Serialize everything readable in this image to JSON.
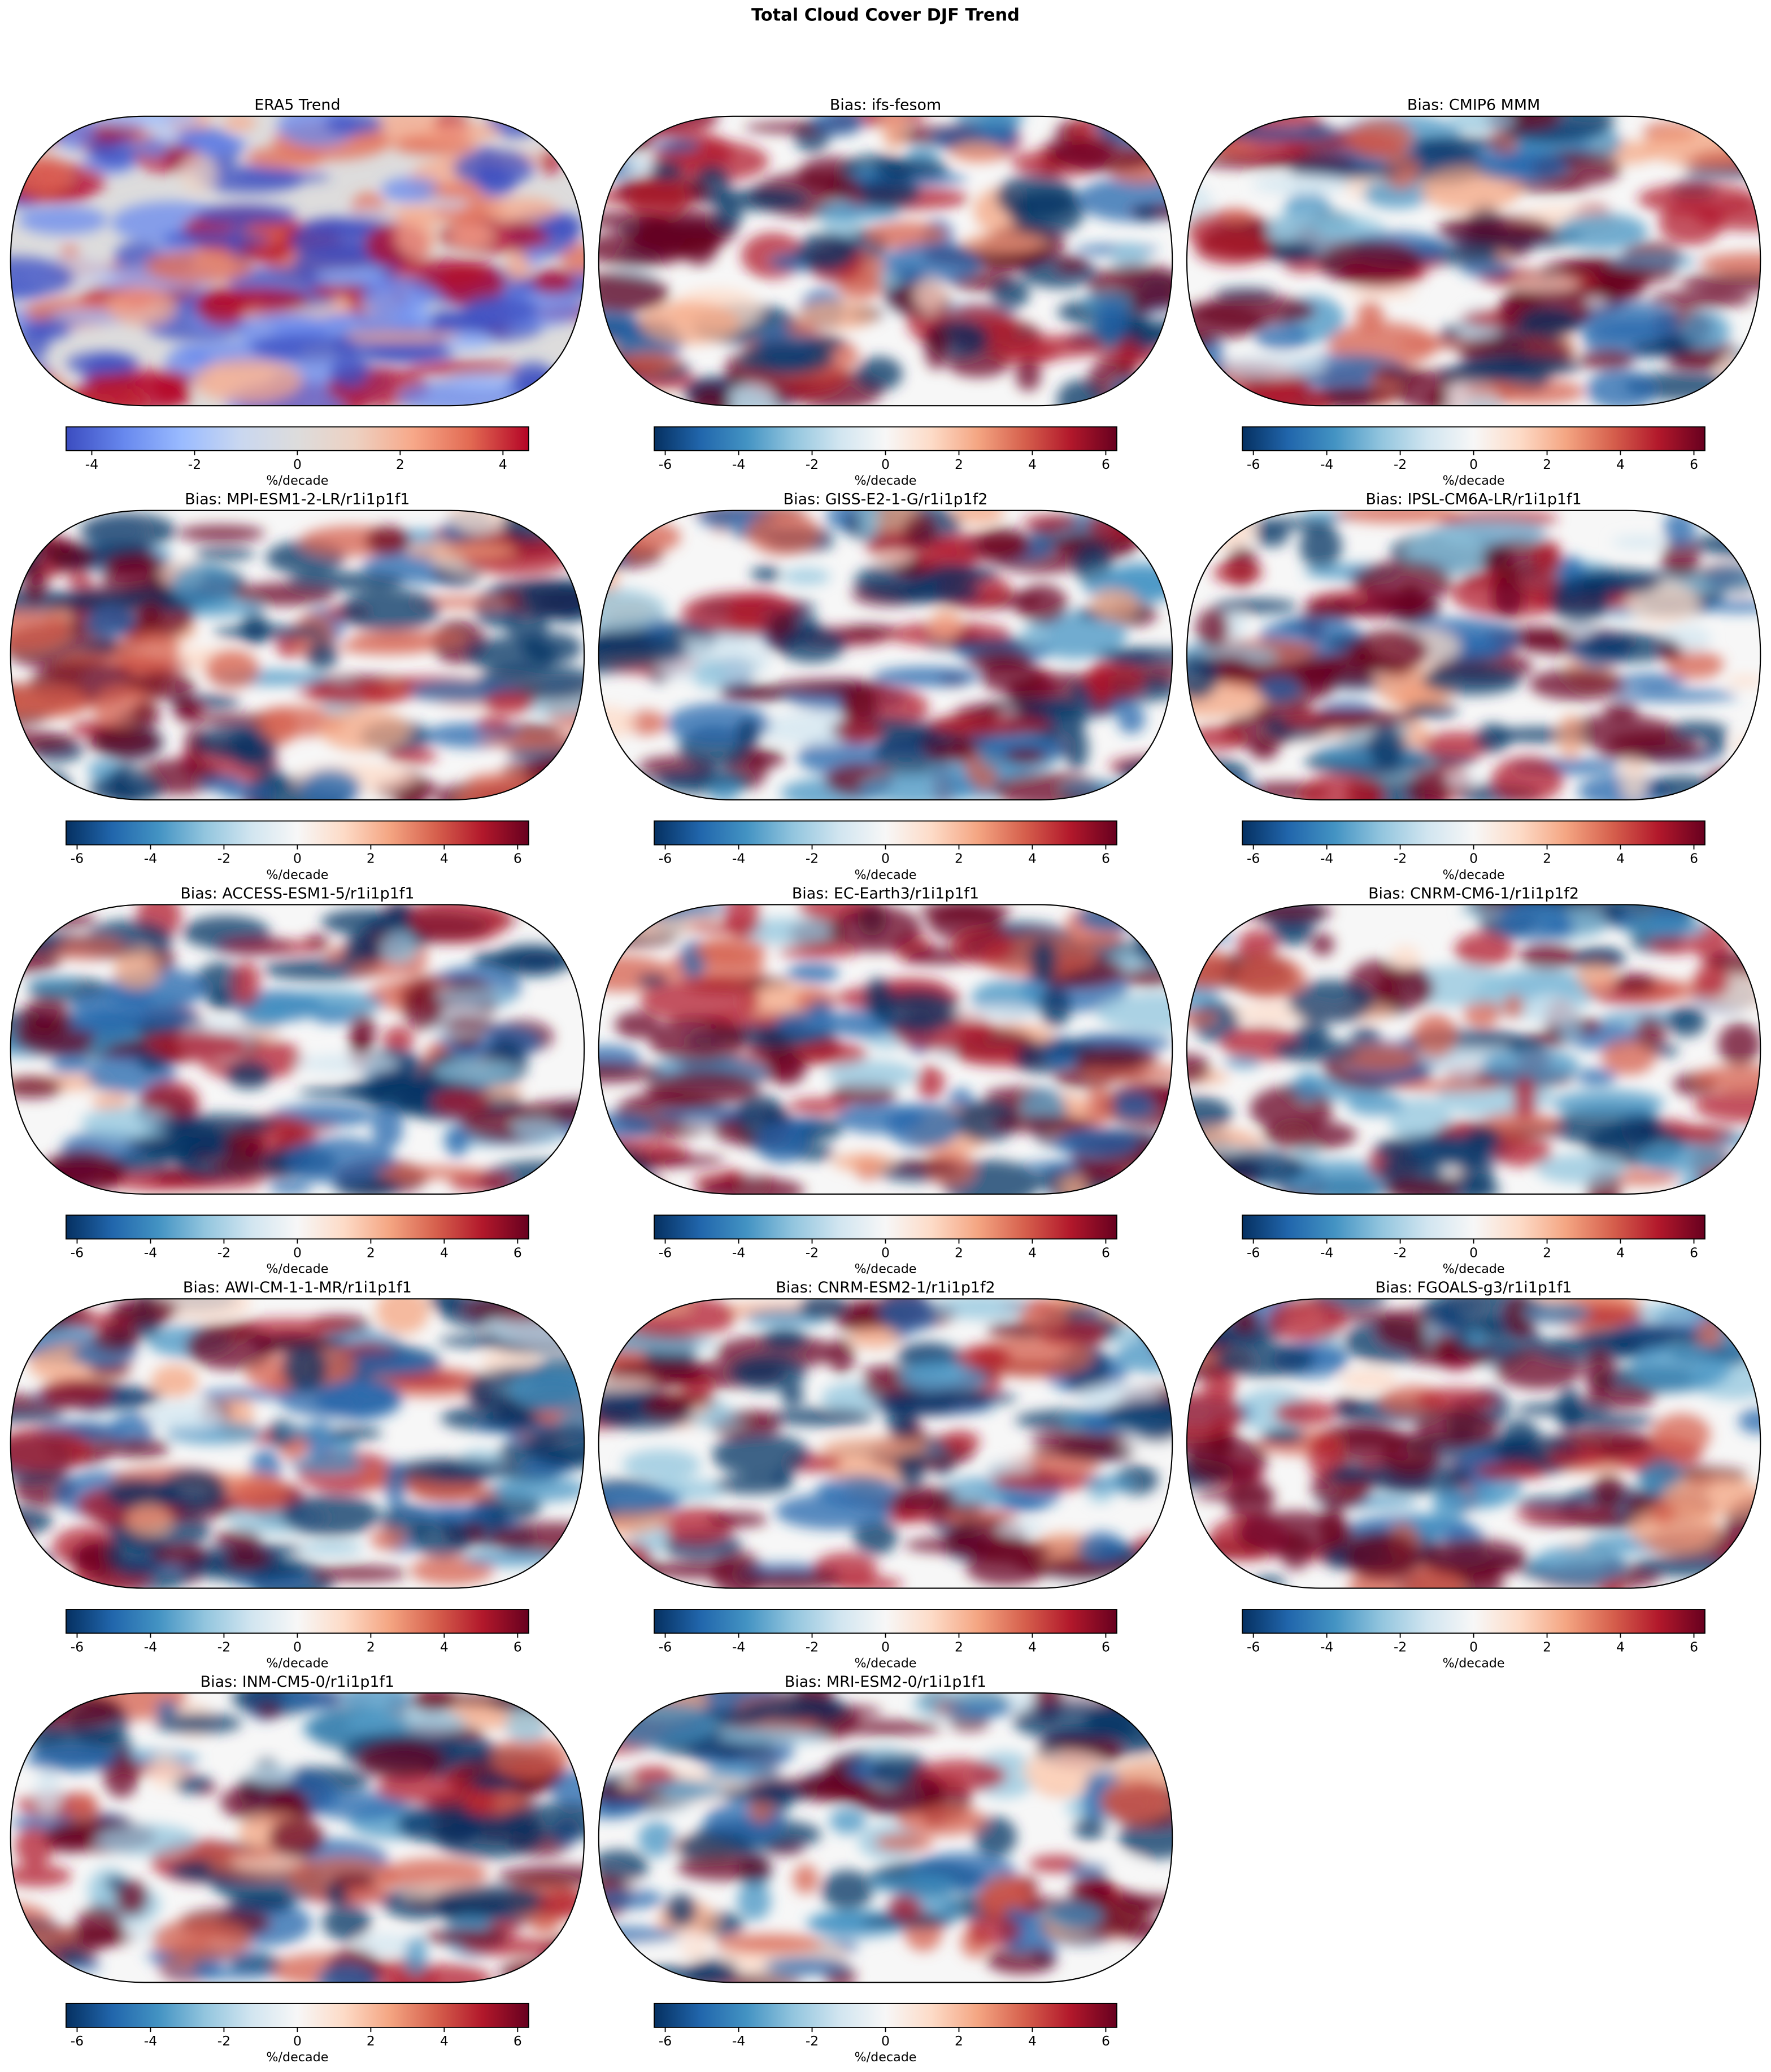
{
  "title": "Total Cloud Cover DJF Trend",
  "chart_data": [
    {
      "type": "map",
      "title": "ERA5 Trend",
      "colormap": "coolwarm",
      "xlim": [
        -4.5,
        4.5
      ],
      "xticks": [
        -4,
        -2,
        0,
        2,
        4
      ],
      "xlabel": "%/decade"
    },
    {
      "type": "map",
      "title": "Bias: ifs-fesom",
      "colormap": "RdBu_r",
      "xlim": [
        -6.3,
        6.3
      ],
      "xticks": [
        -6,
        -4,
        -2,
        0,
        2,
        4,
        6
      ],
      "xlabel": "%/decade"
    },
    {
      "type": "map",
      "title": "Bias: CMIP6 MMM",
      "colormap": "RdBu_r",
      "xlim": [
        -6.3,
        6.3
      ],
      "xticks": [
        -6,
        -4,
        -2,
        0,
        2,
        4,
        6
      ],
      "xlabel": "%/decade"
    },
    {
      "type": "map",
      "title": "Bias: MPI-ESM1-2-LR/r1i1p1f1",
      "colormap": "RdBu_r",
      "xlim": [
        -6.3,
        6.3
      ],
      "xticks": [
        -6,
        -4,
        -2,
        0,
        2,
        4,
        6
      ],
      "xlabel": "%/decade"
    },
    {
      "type": "map",
      "title": "Bias: GISS-E2-1-G/r1i1p1f2",
      "colormap": "RdBu_r",
      "xlim": [
        -6.3,
        6.3
      ],
      "xticks": [
        -6,
        -4,
        -2,
        0,
        2,
        4,
        6
      ],
      "xlabel": "%/decade"
    },
    {
      "type": "map",
      "title": "Bias: IPSL-CM6A-LR/r1i1p1f1",
      "colormap": "RdBu_r",
      "xlim": [
        -6.3,
        6.3
      ],
      "xticks": [
        -6,
        -4,
        -2,
        0,
        2,
        4,
        6
      ],
      "xlabel": "%/decade"
    },
    {
      "type": "map",
      "title": "Bias: ACCESS-ESM1-5/r1i1p1f1",
      "colormap": "RdBu_r",
      "xlim": [
        -6.3,
        6.3
      ],
      "xticks": [
        -6,
        -4,
        -2,
        0,
        2,
        4,
        6
      ],
      "xlabel": "%/decade"
    },
    {
      "type": "map",
      "title": "Bias: EC-Earth3/r1i1p1f1",
      "colormap": "RdBu_r",
      "xlim": [
        -6.3,
        6.3
      ],
      "xticks": [
        -6,
        -4,
        -2,
        0,
        2,
        4,
        6
      ],
      "xlabel": "%/decade"
    },
    {
      "type": "map",
      "title": "Bias: CNRM-CM6-1/r1i1p1f2",
      "colormap": "RdBu_r",
      "xlim": [
        -6.3,
        6.3
      ],
      "xticks": [
        -6,
        -4,
        -2,
        0,
        2,
        4,
        6
      ],
      "xlabel": "%/decade"
    },
    {
      "type": "map",
      "title": "Bias: AWI-CM-1-1-MR/r1i1p1f1",
      "colormap": "RdBu_r",
      "xlim": [
        -6.3,
        6.3
      ],
      "xticks": [
        -6,
        -4,
        -2,
        0,
        2,
        4,
        6
      ],
      "xlabel": "%/decade"
    },
    {
      "type": "map",
      "title": "Bias: CNRM-ESM2-1/r1i1p1f2",
      "colormap": "RdBu_r",
      "xlim": [
        -6.3,
        6.3
      ],
      "xticks": [
        -6,
        -4,
        -2,
        0,
        2,
        4,
        6
      ],
      "xlabel": "%/decade"
    },
    {
      "type": "map",
      "title": "Bias: FGOALS-g3/r1i1p1f1",
      "colormap": "RdBu_r",
      "xlim": [
        -6.3,
        6.3
      ],
      "xticks": [
        -6,
        -4,
        -2,
        0,
        2,
        4,
        6
      ],
      "xlabel": "%/decade"
    },
    {
      "type": "map",
      "title": "Bias: INM-CM5-0/r1i1p1f1",
      "colormap": "RdBu_r",
      "xlim": [
        -6.3,
        6.3
      ],
      "xticks": [
        -6,
        -4,
        -2,
        0,
        2,
        4,
        6
      ],
      "xlabel": "%/decade"
    },
    {
      "type": "map",
      "title": "Bias: MRI-ESM2-0/r1i1p1f1",
      "colormap": "RdBu_r",
      "xlim": [
        -6.3,
        6.3
      ],
      "xticks": [
        -6,
        -4,
        -2,
        0,
        2,
        4,
        6
      ],
      "xlabel": "%/decade"
    }
  ]
}
